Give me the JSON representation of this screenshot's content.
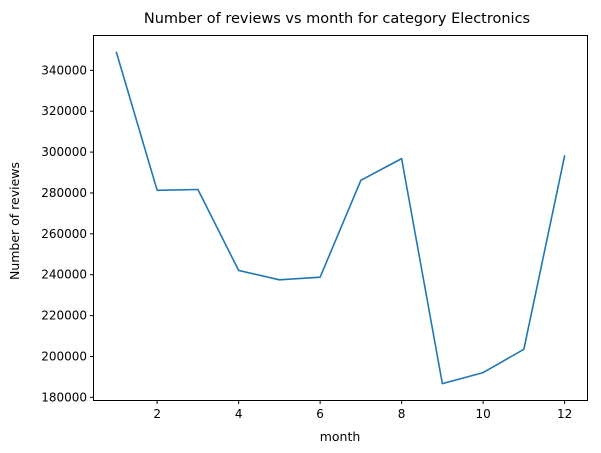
{
  "chart_data": {
    "type": "line",
    "title": "Number of reviews vs month for category Electronics",
    "xlabel": "month",
    "ylabel": "Number of reviews",
    "x": [
      1,
      2,
      3,
      4,
      5,
      6,
      7,
      8,
      9,
      10,
      11,
      12
    ],
    "series": [
      {
        "values": [
          348800,
          281300,
          281700,
          242100,
          237500,
          238800,
          286200,
          296800,
          186700,
          192100,
          203500,
          298100
        ]
      }
    ],
    "xlim": [
      0.45,
      12.55
    ],
    "ylim": [
      178700,
      356800
    ],
    "xticks": [
      2,
      4,
      6,
      8,
      10,
      12
    ],
    "yticks": [
      180000,
      200000,
      220000,
      240000,
      260000,
      280000,
      300000,
      320000,
      340000
    ],
    "grid": false,
    "legend": "none",
    "colors": {
      "line": "#1f77b4",
      "axes": "#000000",
      "background": "#ffffff"
    }
  }
}
